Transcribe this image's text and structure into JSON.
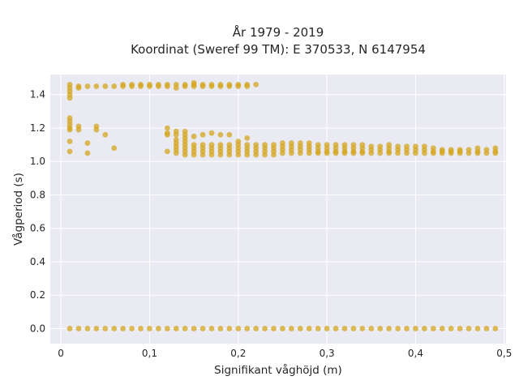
{
  "chart_data": {
    "type": "scatter",
    "title_line1": "År 1979 - 2019",
    "title_line2": "Koordinat (Sweref 99 TM): E 370533, N 6147954",
    "xlabel": "Signifikant våghöjd (m)",
    "ylabel": "Vågperiod (s)",
    "xlim": [
      -0.012,
      0.502
    ],
    "ylim": [
      -0.09,
      1.52
    ],
    "x_ticks": [
      0,
      0.1,
      0.2,
      0.3,
      0.4,
      0.5
    ],
    "x_tick_labels": [
      "0",
      "0,1",
      "0,2",
      "0,3",
      "0,4",
      "0,5"
    ],
    "y_ticks": [
      0,
      0.2,
      0.4,
      0.6,
      0.8,
      1.0,
      1.2,
      1.4
    ],
    "y_tick_labels": [
      "0.0",
      "0.2",
      "0.4",
      "0.6",
      "0.8",
      "1.0",
      "1.2",
      "1.4"
    ],
    "grid": true,
    "background_color": "#eaeaf2",
    "grid_color": "#ffffff",
    "point_color": "#d4a520",
    "points": [
      [
        0.01,
        0
      ],
      [
        0.02,
        0
      ],
      [
        0.03,
        0
      ],
      [
        0.04,
        0
      ],
      [
        0.05,
        0
      ],
      [
        0.06,
        0
      ],
      [
        0.07,
        0
      ],
      [
        0.08,
        0
      ],
      [
        0.09,
        0
      ],
      [
        0.1,
        0
      ],
      [
        0.11,
        0
      ],
      [
        0.12,
        0
      ],
      [
        0.13,
        0
      ],
      [
        0.14,
        0
      ],
      [
        0.15,
        0
      ],
      [
        0.16,
        0
      ],
      [
        0.17,
        0
      ],
      [
        0.18,
        0
      ],
      [
        0.19,
        0
      ],
      [
        0.2,
        0
      ],
      [
        0.21,
        0
      ],
      [
        0.22,
        0
      ],
      [
        0.23,
        0
      ],
      [
        0.24,
        0
      ],
      [
        0.25,
        0
      ],
      [
        0.26,
        0
      ],
      [
        0.27,
        0
      ],
      [
        0.28,
        0
      ],
      [
        0.29,
        0
      ],
      [
        0.3,
        0
      ],
      [
        0.31,
        0
      ],
      [
        0.32,
        0
      ],
      [
        0.33,
        0
      ],
      [
        0.34,
        0
      ],
      [
        0.35,
        0
      ],
      [
        0.36,
        0
      ],
      [
        0.37,
        0
      ],
      [
        0.38,
        0
      ],
      [
        0.39,
        0
      ],
      [
        0.4,
        0
      ],
      [
        0.41,
        0
      ],
      [
        0.42,
        0
      ],
      [
        0.43,
        0
      ],
      [
        0.44,
        0
      ],
      [
        0.45,
        0
      ],
      [
        0.46,
        0
      ],
      [
        0.47,
        0
      ],
      [
        0.48,
        0
      ],
      [
        0.49,
        0
      ],
      [
        0.01,
        1.38
      ],
      [
        0.01,
        1.4
      ],
      [
        0.01,
        1.42
      ],
      [
        0.01,
        1.44
      ],
      [
        0.01,
        1.46
      ],
      [
        0.02,
        1.44
      ],
      [
        0.02,
        1.45
      ],
      [
        0.03,
        1.45
      ],
      [
        0.04,
        1.45
      ],
      [
        0.05,
        1.45
      ],
      [
        0.06,
        1.45
      ],
      [
        0.07,
        1.45
      ],
      [
        0.07,
        1.46
      ],
      [
        0.08,
        1.45
      ],
      [
        0.08,
        1.46
      ],
      [
        0.09,
        1.45
      ],
      [
        0.09,
        1.46
      ],
      [
        0.1,
        1.45
      ],
      [
        0.1,
        1.46
      ],
      [
        0.11,
        1.45
      ],
      [
        0.11,
        1.46
      ],
      [
        0.12,
        1.45
      ],
      [
        0.12,
        1.46
      ],
      [
        0.13,
        1.44
      ],
      [
        0.13,
        1.46
      ],
      [
        0.14,
        1.45
      ],
      [
        0.14,
        1.46
      ],
      [
        0.15,
        1.45
      ],
      [
        0.15,
        1.46
      ],
      [
        0.15,
        1.47
      ],
      [
        0.16,
        1.45
      ],
      [
        0.16,
        1.46
      ],
      [
        0.17,
        1.45
      ],
      [
        0.17,
        1.46
      ],
      [
        0.18,
        1.45
      ],
      [
        0.18,
        1.46
      ],
      [
        0.19,
        1.45
      ],
      [
        0.19,
        1.46
      ],
      [
        0.2,
        1.45
      ],
      [
        0.2,
        1.46
      ],
      [
        0.21,
        1.45
      ],
      [
        0.21,
        1.46
      ],
      [
        0.22,
        1.46
      ],
      [
        0.01,
        1.26
      ],
      [
        0.01,
        1.24
      ],
      [
        0.01,
        1.22
      ],
      [
        0.01,
        1.2
      ],
      [
        0.01,
        1.19
      ],
      [
        0.01,
        1.12
      ],
      [
        0.01,
        1.06
      ],
      [
        0.02,
        1.21
      ],
      [
        0.02,
        1.19
      ],
      [
        0.03,
        1.11
      ],
      [
        0.03,
        1.05
      ],
      [
        0.04,
        1.21
      ],
      [
        0.04,
        1.19
      ],
      [
        0.05,
        1.16
      ],
      [
        0.06,
        1.08
      ],
      [
        0.12,
        1.2
      ],
      [
        0.12,
        1.17
      ],
      [
        0.12,
        1.16
      ],
      [
        0.12,
        1.06
      ],
      [
        0.13,
        1.18
      ],
      [
        0.13,
        1.16
      ],
      [
        0.13,
        1.13
      ],
      [
        0.13,
        1.11
      ],
      [
        0.13,
        1.09
      ],
      [
        0.13,
        1.07
      ],
      [
        0.13,
        1.05
      ],
      [
        0.14,
        1.18
      ],
      [
        0.14,
        1.16
      ],
      [
        0.14,
        1.14
      ],
      [
        0.14,
        1.12
      ],
      [
        0.14,
        1.1
      ],
      [
        0.14,
        1.08
      ],
      [
        0.14,
        1.06
      ],
      [
        0.14,
        1.04
      ],
      [
        0.15,
        1.15
      ],
      [
        0.15,
        1.1
      ],
      [
        0.15,
        1.08
      ],
      [
        0.15,
        1.06
      ],
      [
        0.15,
        1.04
      ],
      [
        0.16,
        1.16
      ],
      [
        0.16,
        1.1
      ],
      [
        0.16,
        1.08
      ],
      [
        0.16,
        1.06
      ],
      [
        0.16,
        1.04
      ],
      [
        0.17,
        1.17
      ],
      [
        0.17,
        1.1
      ],
      [
        0.17,
        1.08
      ],
      [
        0.17,
        1.06
      ],
      [
        0.17,
        1.04
      ],
      [
        0.18,
        1.16
      ],
      [
        0.18,
        1.1
      ],
      [
        0.18,
        1.08
      ],
      [
        0.18,
        1.06
      ],
      [
        0.18,
        1.04
      ],
      [
        0.19,
        1.16
      ],
      [
        0.19,
        1.1
      ],
      [
        0.19,
        1.08
      ],
      [
        0.19,
        1.06
      ],
      [
        0.19,
        1.04
      ],
      [
        0.2,
        1.12
      ],
      [
        0.2,
        1.1
      ],
      [
        0.2,
        1.08
      ],
      [
        0.2,
        1.06
      ],
      [
        0.2,
        1.04
      ],
      [
        0.21,
        1.14
      ],
      [
        0.21,
        1.1
      ],
      [
        0.21,
        1.08
      ],
      [
        0.21,
        1.06
      ],
      [
        0.21,
        1.04
      ],
      [
        0.22,
        1.1
      ],
      [
        0.22,
        1.08
      ],
      [
        0.22,
        1.06
      ],
      [
        0.22,
        1.04
      ],
      [
        0.23,
        1.1
      ],
      [
        0.23,
        1.08
      ],
      [
        0.23,
        1.06
      ],
      [
        0.23,
        1.04
      ],
      [
        0.24,
        1.1
      ],
      [
        0.24,
        1.08
      ],
      [
        0.24,
        1.06
      ],
      [
        0.24,
        1.04
      ],
      [
        0.25,
        1.11
      ],
      [
        0.25,
        1.09
      ],
      [
        0.25,
        1.07
      ],
      [
        0.25,
        1.05
      ],
      [
        0.26,
        1.11
      ],
      [
        0.26,
        1.09
      ],
      [
        0.26,
        1.07
      ],
      [
        0.26,
        1.05
      ],
      [
        0.27,
        1.11
      ],
      [
        0.27,
        1.09
      ],
      [
        0.27,
        1.07
      ],
      [
        0.27,
        1.05
      ],
      [
        0.28,
        1.11
      ],
      [
        0.28,
        1.09
      ],
      [
        0.28,
        1.07
      ],
      [
        0.28,
        1.05
      ],
      [
        0.29,
        1.1
      ],
      [
        0.29,
        1.08
      ],
      [
        0.29,
        1.06
      ],
      [
        0.29,
        1.05
      ],
      [
        0.3,
        1.1
      ],
      [
        0.3,
        1.08
      ],
      [
        0.3,
        1.06
      ],
      [
        0.3,
        1.05
      ],
      [
        0.31,
        1.1
      ],
      [
        0.31,
        1.08
      ],
      [
        0.31,
        1.06
      ],
      [
        0.31,
        1.05
      ],
      [
        0.32,
        1.1
      ],
      [
        0.32,
        1.08
      ],
      [
        0.32,
        1.06
      ],
      [
        0.32,
        1.05
      ],
      [
        0.33,
        1.1
      ],
      [
        0.33,
        1.08
      ],
      [
        0.33,
        1.06
      ],
      [
        0.33,
        1.05
      ],
      [
        0.34,
        1.1
      ],
      [
        0.34,
        1.08
      ],
      [
        0.34,
        1.06
      ],
      [
        0.34,
        1.05
      ],
      [
        0.35,
        1.09
      ],
      [
        0.35,
        1.07
      ],
      [
        0.35,
        1.05
      ],
      [
        0.36,
        1.09
      ],
      [
        0.36,
        1.07
      ],
      [
        0.36,
        1.05
      ],
      [
        0.37,
        1.1
      ],
      [
        0.37,
        1.08
      ],
      [
        0.37,
        1.06
      ],
      [
        0.37,
        1.05
      ],
      [
        0.38,
        1.09
      ],
      [
        0.38,
        1.07
      ],
      [
        0.38,
        1.05
      ],
      [
        0.39,
        1.09
      ],
      [
        0.39,
        1.07
      ],
      [
        0.39,
        1.05
      ],
      [
        0.4,
        1.09
      ],
      [
        0.4,
        1.07
      ],
      [
        0.4,
        1.05
      ],
      [
        0.41,
        1.09
      ],
      [
        0.41,
        1.07
      ],
      [
        0.41,
        1.05
      ],
      [
        0.42,
        1.08
      ],
      [
        0.42,
        1.06
      ],
      [
        0.42,
        1.05
      ],
      [
        0.43,
        1.07
      ],
      [
        0.43,
        1.06
      ],
      [
        0.43,
        1.05
      ],
      [
        0.44,
        1.07
      ],
      [
        0.44,
        1.06
      ],
      [
        0.44,
        1.05
      ],
      [
        0.45,
        1.07
      ],
      [
        0.45,
        1.06
      ],
      [
        0.45,
        1.05
      ],
      [
        0.46,
        1.07
      ],
      [
        0.46,
        1.05
      ],
      [
        0.47,
        1.08
      ],
      [
        0.47,
        1.06
      ],
      [
        0.47,
        1.05
      ],
      [
        0.48,
        1.07
      ],
      [
        0.48,
        1.05
      ],
      [
        0.49,
        1.08
      ],
      [
        0.49,
        1.06
      ],
      [
        0.49,
        1.05
      ]
    ]
  }
}
